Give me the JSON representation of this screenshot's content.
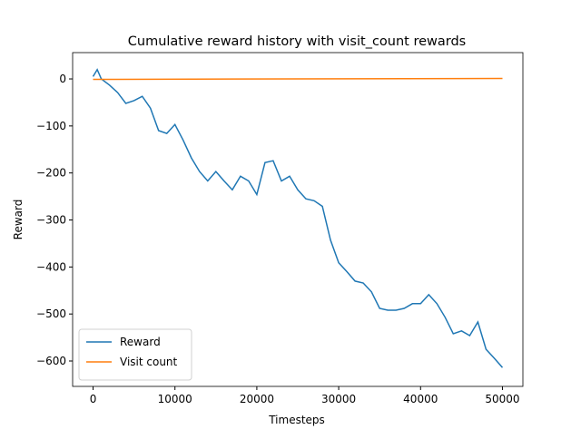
{
  "chart_data": {
    "type": "line",
    "title": "Cumulative reward history with visit_count rewards",
    "x_label": "Timesteps",
    "y_label": "Reward",
    "xlim": [
      -2500,
      52500
    ],
    "xticks": [
      0,
      10000,
      20000,
      30000,
      40000,
      50000
    ],
    "ylim": [
      -654,
      56
    ],
    "yticks": [
      {
        "value": -600,
        "label": "−600"
      },
      {
        "value": -500,
        "label": "−500"
      },
      {
        "value": -400,
        "label": "−400"
      },
      {
        "value": -300,
        "label": "−300"
      },
      {
        "value": -200,
        "label": "−200"
      },
      {
        "value": -100,
        "label": "−100"
      },
      0
    ],
    "legend": "lower left",
    "series": [
      {
        "name": "Reward",
        "color": "#1f77b4",
        "x": [
          0,
          500,
          1000,
          2000,
          3000,
          4000,
          5000,
          6000,
          7000,
          8000,
          9000,
          10000,
          11000,
          12000,
          13000,
          14000,
          15000,
          16000,
          17000,
          18000,
          19000,
          20000,
          21000,
          22000,
          23000,
          24000,
          25000,
          26000,
          27000,
          28000,
          29000,
          30000,
          31000,
          32000,
          33000,
          34000,
          35000,
          36000,
          37000,
          38000,
          39000,
          40000,
          41000,
          42000,
          43000,
          44000,
          45000,
          46000,
          47000,
          48000,
          49000,
          50000
        ],
        "values": [
          5,
          20,
          0,
          -13,
          -29,
          -52,
          -46,
          -37,
          -62,
          -110,
          -116,
          -97,
          -130,
          -168,
          -197,
          -217,
          -197,
          -217,
          -236,
          -207,
          -217,
          -246,
          -178,
          -174,
          -217,
          -207,
          -236,
          -255,
          -259,
          -271,
          -343,
          -391,
          -410,
          -430,
          -434,
          -453,
          -488,
          -492,
          -492,
          -488,
          -478,
          -478,
          -459,
          -478,
          -507,
          -542,
          -536,
          -546,
          -517,
          -575,
          -594,
          -614
        ]
      },
      {
        "name": "Visit count",
        "color": "#ff7f0e",
        "x": [
          0,
          50000
        ],
        "values": [
          -1,
          1
        ]
      }
    ]
  }
}
